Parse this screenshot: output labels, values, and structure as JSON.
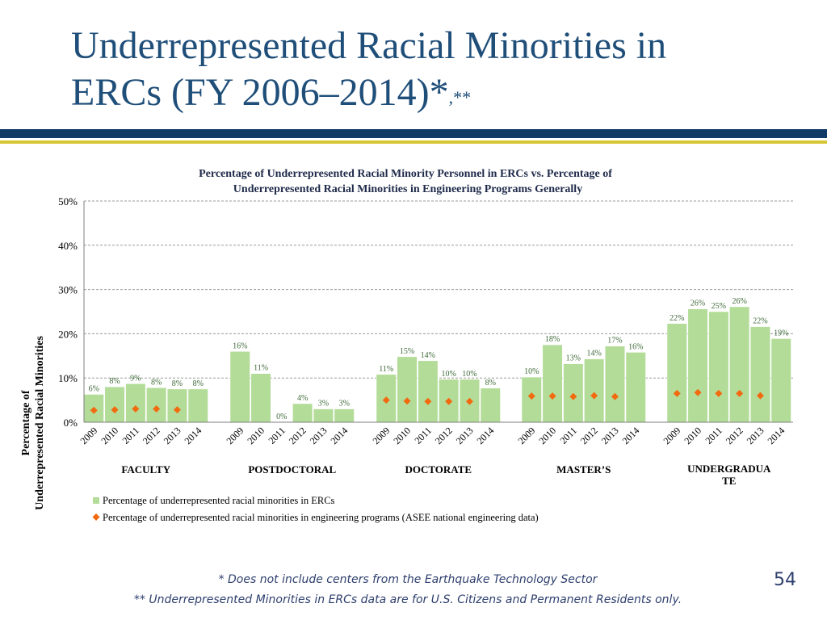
{
  "slide": {
    "title_line1": "Underrepresented Racial Minorities in",
    "title_line2": "ERCs (FY 2006–2014)*",
    "title_sup": ",**",
    "footnote1": "* Does not include centers from the Earthquake Technology Sector",
    "footnote2": "** Underrepresented Minorities in ERCs data are for U.S. Citizens and Permanent Residents only.",
    "page_number": "54"
  },
  "colors": {
    "title": "#1f4e79",
    "rule_navy": "#123a66",
    "rule_gold": "#d6c534",
    "bar_fill": "#b3dc98",
    "bar_stroke": "#ffffff",
    "marker": "#f26a10",
    "data_label": "#3f6b39",
    "grid": "#9a9a9a"
  },
  "chart_data": {
    "type": "bar",
    "title_line1": "Percentage of Underrepresented Racial Minority Personnel in ERCs vs. Percentage of",
    "title_line2": "Underrepresented Racial Minorities in Engineering Programs Generally",
    "ylabel_line1": "Percentage of",
    "ylabel_line2": "Underrepresented Racial Minorities",
    "ylim": [
      0,
      50
    ],
    "yticks": [
      "0%",
      "10%",
      "20%",
      "30%",
      "40%",
      "50%"
    ],
    "grid": true,
    "legend_position": "bottom",
    "groups": [
      {
        "label": "FACULTY",
        "years": [
          "2009",
          "2010",
          "2011",
          "2012",
          "2013",
          "2014"
        ],
        "bars": [
          6.3,
          8.0,
          8.7,
          7.8,
          7.5,
          7.5
        ],
        "bar_labels": [
          "6%",
          "8%",
          "9%",
          "8%",
          "8%",
          "8%"
        ],
        "markers": [
          2.7,
          2.8,
          3.0,
          3.0,
          2.8,
          null
        ]
      },
      {
        "label": "POSTDOCTORAL",
        "years": [
          "2009",
          "2010",
          "2011",
          "2012",
          "2013",
          "2014"
        ],
        "bars": [
          16.0,
          11.0,
          0.0,
          4.2,
          3.0,
          3.0
        ],
        "bar_labels": [
          "16%",
          "11%",
          "0%",
          "4%",
          "3%",
          "3%"
        ],
        "markers": [
          null,
          null,
          null,
          null,
          null,
          null
        ]
      },
      {
        "label": "DOCTORATE",
        "years": [
          "2009",
          "2010",
          "2011",
          "2012",
          "2013",
          "2014"
        ],
        "bars": [
          10.8,
          14.8,
          13.9,
          9.7,
          9.7,
          7.7
        ],
        "bar_labels": [
          "11%",
          "15%",
          "14%",
          "10%",
          "10%",
          "8%"
        ],
        "markers": [
          5.0,
          4.8,
          4.7,
          4.7,
          4.7,
          null
        ]
      },
      {
        "label": "MASTER’S",
        "years": [
          "2009",
          "2010",
          "2011",
          "2012",
          "2013",
          "2014"
        ],
        "bars": [
          10.2,
          17.5,
          13.2,
          14.3,
          17.2,
          15.8
        ],
        "bar_labels": [
          "10%",
          "18%",
          "13%",
          "14%",
          "17%",
          "16%"
        ],
        "markers": [
          5.9,
          5.9,
          5.8,
          6.0,
          5.8,
          null
        ]
      },
      {
        "label_line1": "UNDERGRADUA",
        "label_line2": "TE",
        "years": [
          "2009",
          "2010",
          "2011",
          "2012",
          "2013",
          "2014"
        ],
        "bars": [
          22.3,
          25.6,
          25.0,
          26.1,
          21.6,
          18.9
        ],
        "bar_labels": [
          "22%",
          "26%",
          "25%",
          "26%",
          "22%",
          "19%"
        ],
        "markers": [
          6.5,
          6.7,
          6.5,
          6.5,
          6.0,
          null
        ]
      }
    ],
    "series": [
      {
        "name": "Percentage of underrepresented racial minorities in ERCs"
      },
      {
        "name": "Percentage of underrepresented racial minorities in engineering programs (ASEE national engineering data)"
      }
    ]
  }
}
